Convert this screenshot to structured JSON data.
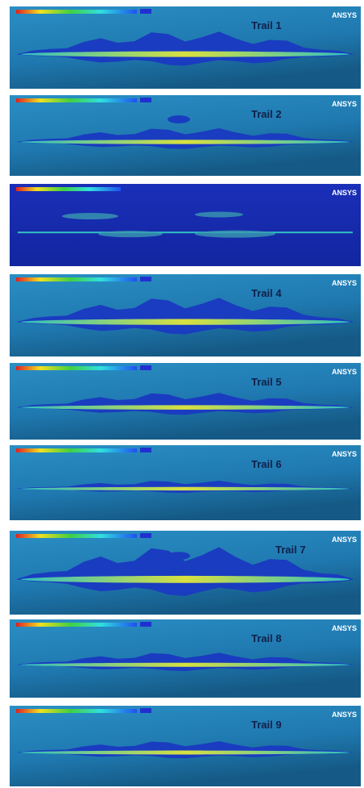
{
  "panels": [
    {
      "title": "Trail 1",
      "logo": "ANSYS"
    },
    {
      "title": "Trail 2",
      "logo": "ANSYS"
    },
    {
      "logo": "ANSYS"
    },
    {
      "title": "Trail 4",
      "logo": "ANSYS"
    },
    {
      "title": "Trail 5",
      "logo": "ANSYS"
    },
    {
      "title": "Trail 6",
      "logo": "ANSYS"
    },
    {
      "title": "Trail 7",
      "logo": "ANSYS"
    },
    {
      "title": "Trail 8",
      "logo": "ANSYS"
    },
    {
      "title": "Trail 9",
      "logo": "ANSYS"
    }
  ]
}
